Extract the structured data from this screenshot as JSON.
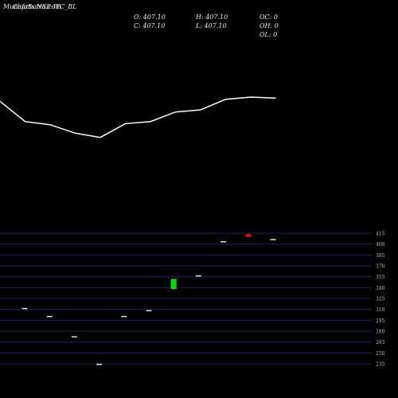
{
  "header": {
    "watermark": "MunafaSutra.com",
    "title": "Charts NSE ITC_BL"
  },
  "ohlc": {
    "o": "O: 407.10",
    "h": "H: 407.10",
    "oc": "OC: 0",
    "c": "C: 407.10",
    "l": "L: 407.10",
    "oh": "OH: 0",
    "ol": "OL: 0"
  },
  "colors": {
    "background": "#000000",
    "line": "#ffffff",
    "grid": "#1f2a78",
    "up": "#00dd00",
    "down": "#ee0000",
    "flat_mark": "#bbffbb",
    "tick_text": "#bbbbbb",
    "header_text": "#eeeeee"
  },
  "chart_data": [
    {
      "type": "line",
      "panel": "moving-average",
      "x": [
        0,
        1,
        2,
        3,
        4,
        5,
        6,
        7,
        8,
        9,
        10,
        11
      ],
      "values": [
        337,
        318,
        315,
        307,
        303,
        316,
        318,
        327,
        329,
        339,
        341,
        340
      ]
    },
    {
      "type": "candlestick",
      "panel": "price",
      "ylim": [
        220,
        422
      ],
      "yticks": [
        415,
        400,
        385,
        370,
        355,
        340,
        325,
        310,
        295,
        280,
        265,
        250,
        235
      ],
      "candles": [
        {
          "o": 312,
          "h": 312,
          "l": 312,
          "c": 312
        },
        {
          "o": 301,
          "h": 301,
          "l": 301,
          "c": 301
        },
        {
          "o": 273,
          "h": 273,
          "l": 273,
          "c": 273
        },
        {
          "o": 235,
          "h": 235,
          "l": 235,
          "c": 235
        },
        {
          "o": 301,
          "h": 301,
          "l": 301,
          "c": 301
        },
        {
          "o": 309,
          "h": 309,
          "l": 309,
          "c": 309
        },
        {
          "o": 338,
          "h": 352,
          "l": 338,
          "c": 352
        },
        {
          "o": 357,
          "h": 357,
          "l": 357,
          "c": 357
        },
        {
          "o": 404,
          "h": 404,
          "l": 404,
          "c": 404
        },
        {
          "o": 414,
          "h": 414,
          "l": 410,
          "c": 410
        },
        {
          "o": 407.1,
          "h": 407.1,
          "l": 407.1,
          "c": 407.1
        }
      ]
    }
  ]
}
